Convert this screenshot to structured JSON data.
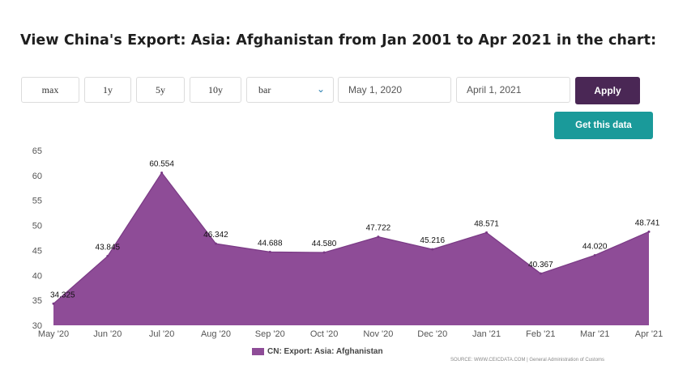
{
  "page": {
    "title": "View China's Export: Asia: Afghanistan from Jan 2001 to Apr 2021 in the chart:"
  },
  "controls": {
    "ranges": [
      "max",
      "1y",
      "5y",
      "10y"
    ],
    "chart_type": "bar",
    "start_date": "May 1, 2020",
    "end_date": "April 1, 2021",
    "apply_label": "Apply",
    "get_data_label": "Get this data"
  },
  "colors": {
    "series_fill": "#8e4c97",
    "series_line": "#7a3a85",
    "apply_bg": "#4a2755",
    "get_data_bg": "#1a9a9a"
  },
  "source_text": "SOURCE: WWW.CEICDATA.COM | General Administration of Customs",
  "chart_data": {
    "type": "area",
    "categories": [
      "May '20",
      "Jun '20",
      "Jul '20",
      "Aug '20",
      "Sep '20",
      "Oct '20",
      "Nov '20",
      "Dec '20",
      "Jan '21",
      "Feb '21",
      "Mar '21",
      "Apr '21"
    ],
    "series": [
      {
        "name": "CN: Export: Asia: Afghanistan",
        "values": [
          34.325,
          43.845,
          60.554,
          46.342,
          44.688,
          44.58,
          47.722,
          45.216,
          48.571,
          40.367,
          44.02,
          48.741
        ],
        "labels": [
          "34.325",
          "43.845",
          "60.554",
          "46.342",
          "44.688",
          "44.580",
          "47.722",
          "45.216",
          "48.571",
          "40.367",
          "44.020",
          "48.741"
        ]
      }
    ],
    "ylim": [
      30,
      65
    ],
    "yticks": [
      30,
      35,
      40,
      45,
      50,
      55,
      60,
      65
    ],
    "grid": false,
    "legend": "bottom-center"
  }
}
